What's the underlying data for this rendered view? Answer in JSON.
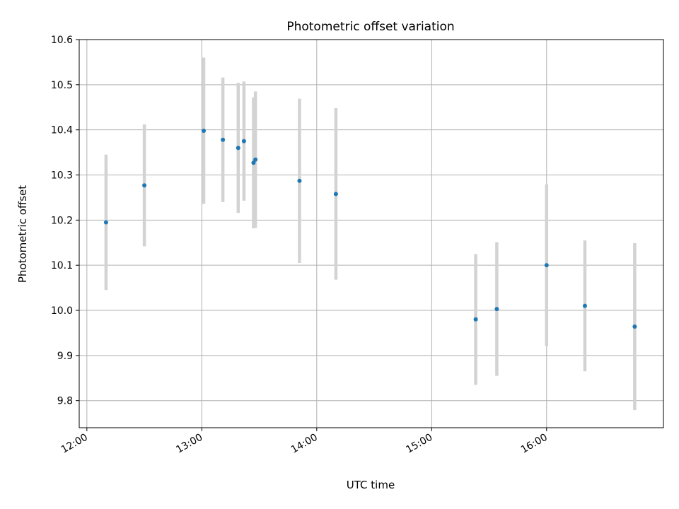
{
  "chart_data": {
    "type": "scatter",
    "title": "Photometric offset variation",
    "xlabel": "UTC time",
    "ylabel": "Photometric offset",
    "x_ticks": [
      "12:00",
      "13:00",
      "14:00",
      "15:00",
      "16:00"
    ],
    "y_ticks": [
      "9.8",
      "9.9",
      "10.0",
      "10.1",
      "10.2",
      "10.3",
      "10.4",
      "10.5",
      "10.6"
    ],
    "xlim": [
      "11:56",
      "17:01"
    ],
    "ylim": [
      9.74,
      10.6
    ],
    "grid": true,
    "colors": {
      "point": "#1f77b4",
      "errorbar": "#d3d3d3",
      "grid": "#b0b0b0"
    },
    "series": [
      {
        "points": [
          {
            "x": "12:10",
            "y": 10.195,
            "err": 0.15
          },
          {
            "x": "12:30",
            "y": 10.277,
            "err": 0.135
          },
          {
            "x": "13:01",
            "y": 10.398,
            "err": 0.162
          },
          {
            "x": "13:11",
            "y": 10.378,
            "err": 0.138
          },
          {
            "x": "13:19",
            "y": 10.36,
            "err": 0.144
          },
          {
            "x": "13:22",
            "y": 10.375,
            "err": 0.132
          },
          {
            "x": "13:27",
            "y": 10.327,
            "err": 0.145
          },
          {
            "x": "13:28",
            "y": 10.334,
            "err": 0.151
          },
          {
            "x": "13:51",
            "y": 10.287,
            "err": 0.182
          },
          {
            "x": "14:10",
            "y": 10.258,
            "err": 0.19
          },
          {
            "x": "15:23",
            "y": 9.98,
            "err": 0.145
          },
          {
            "x": "15:34",
            "y": 10.003,
            "err": 0.148
          },
          {
            "x": "16:00",
            "y": 10.1,
            "err": 0.179
          },
          {
            "x": "16:20",
            "y": 10.01,
            "err": 0.145
          },
          {
            "x": "16:46",
            "y": 9.964,
            "err": 0.185
          }
        ]
      }
    ]
  }
}
